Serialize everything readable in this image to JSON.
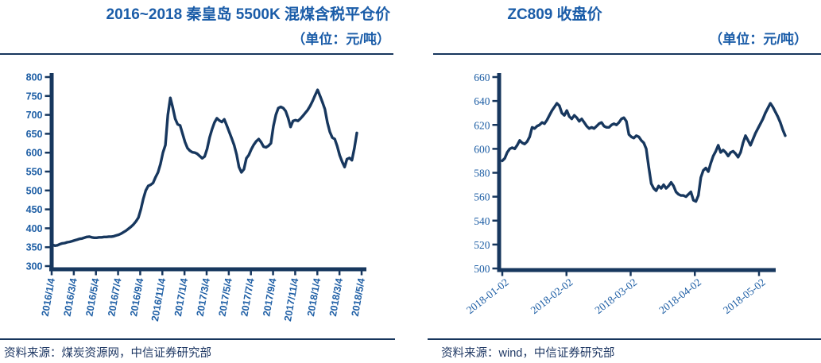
{
  "chart_data": [
    {
      "type": "line",
      "title": "2016~2018 秦皇岛 5500K 混煤含税平仓价",
      "unit_label": "（单位：元/吨）",
      "source": "资料来源：煤炭资源网，中信证券研究部",
      "ylabel": "元/吨",
      "ylim": [
        300,
        800
      ],
      "grid": false,
      "legend_position": "none",
      "line_color": "#17375E",
      "axis_color": "#17375E",
      "label_color": "#1C5DA4",
      "yticks": [
        300,
        350,
        400,
        450,
        500,
        550,
        600,
        650,
        700,
        750,
        800
      ],
      "x_tick_labels": [
        "2016/1/4",
        "2016/3/4",
        "2016/5/4",
        "2016/7/4",
        "2016/9/4",
        "2016/11/4",
        "2017/1/4",
        "2017/3/4",
        "2017/5/4",
        "2017/7/4",
        "2017/9/4",
        "2017/11/4",
        "2018/1/4",
        "2018/3/4",
        "2018/5/4"
      ],
      "series": [
        {
          "name": "秦皇岛 5500K 混煤含税平仓价",
          "sampling": "weekly 2016/1/4 - 2018/5/4",
          "values": [
            356,
            354,
            355,
            358,
            360,
            361,
            363,
            364,
            366,
            368,
            370,
            372,
            373,
            375,
            377,
            378,
            376,
            375,
            375,
            376,
            376,
            377,
            377,
            378,
            378,
            379,
            381,
            383,
            386,
            390,
            394,
            399,
            404,
            410,
            418,
            428,
            450,
            478,
            500,
            512,
            515,
            520,
            535,
            548,
            570,
            600,
            620,
            700,
            745,
            720,
            690,
            675,
            672,
            650,
            628,
            612,
            605,
            601,
            600,
            597,
            591,
            585,
            590,
            610,
            640,
            662,
            680,
            691,
            685,
            681,
            688,
            672,
            655,
            638,
            620,
            595,
            562,
            548,
            556,
            585,
            594,
            609,
            621,
            630,
            636,
            628,
            616,
            614,
            618,
            625,
            670,
            700,
            718,
            721,
            718,
            710,
            692,
            668,
            684,
            686,
            684,
            690,
            697,
            705,
            713,
            724,
            737,
            752,
            766,
            750,
            733,
            715,
            680,
            655,
            640,
            636,
            617,
            593,
            576,
            562,
            583,
            586,
            580,
            612,
            652
          ]
        }
      ]
    },
    {
      "type": "line",
      "title": "ZC809 收盘价",
      "unit_label": "（单位：元/吨）",
      "source": "资料来源：wind，中信证券研究部",
      "ylabel": "元/吨",
      "ylim": [
        500,
        660
      ],
      "grid": false,
      "legend_position": "none",
      "line_color": "#17375E",
      "axis_color": "#17375E",
      "label_color": "#1C5DA4",
      "yticks": [
        500,
        520,
        540,
        560,
        580,
        600,
        620,
        640,
        660
      ],
      "x_tick_labels": [
        "2018-01-02",
        "2018-02-02",
        "2018-03-02",
        "2018-04-02",
        "2018-05-02"
      ],
      "series": [
        {
          "name": "ZC809 收盘价",
          "sampling": "daily 2018-01-02 - 2018-05-18",
          "values": [
            590,
            592,
            597,
            600,
            601,
            600,
            603,
            607,
            605,
            604,
            606,
            610,
            618,
            617,
            619,
            620,
            622,
            621,
            624,
            628,
            632,
            635,
            638,
            636,
            630,
            628,
            632,
            627,
            625,
            628,
            626,
            623,
            625,
            622,
            619,
            617,
            618,
            617,
            619,
            621,
            622,
            619,
            618,
            618,
            620,
            621,
            620,
            622,
            625,
            626,
            623,
            612,
            610,
            609,
            611,
            610,
            607,
            605,
            600,
            585,
            571,
            567,
            565,
            569,
            567,
            570,
            567,
            569,
            572,
            569,
            564,
            562,
            561,
            561,
            560,
            562,
            564,
            557,
            556,
            561,
            576,
            582,
            584,
            581,
            588,
            594,
            598,
            603,
            597,
            599,
            597,
            594,
            597,
            598,
            596,
            593,
            597,
            605,
            611,
            607,
            603,
            608,
            613,
            617,
            621,
            625,
            630,
            634,
            638,
            635,
            631,
            627,
            622,
            616,
            611
          ]
        }
      ]
    }
  ]
}
